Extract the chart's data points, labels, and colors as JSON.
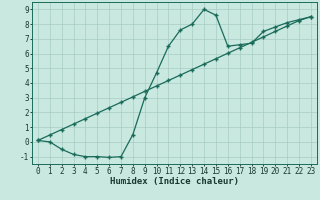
{
  "xlabel": "Humidex (Indice chaleur)",
  "bg_color": "#c8e8e0",
  "grid_color": "#a8ccc4",
  "line_color": "#1a6b5a",
  "xlim": [
    -0.5,
    23.5
  ],
  "ylim": [
    -1.5,
    9.5
  ],
  "xticks": [
    0,
    1,
    2,
    3,
    4,
    5,
    6,
    7,
    8,
    9,
    10,
    11,
    12,
    13,
    14,
    15,
    16,
    17,
    18,
    19,
    20,
    21,
    22,
    23
  ],
  "yticks": [
    -1,
    0,
    1,
    2,
    3,
    4,
    5,
    6,
    7,
    8,
    9
  ],
  "curve1_x": [
    0,
    1,
    2,
    3,
    4,
    5,
    6,
    7,
    8,
    9,
    10,
    11,
    12,
    13,
    14,
    15,
    16,
    17,
    18,
    19,
    20,
    21,
    22,
    23
  ],
  "curve1_y": [
    0.1,
    0.0,
    -0.5,
    -0.85,
    -1.0,
    -1.0,
    -1.05,
    -1.0,
    0.5,
    3.0,
    4.7,
    6.5,
    7.6,
    8.0,
    9.0,
    8.6,
    6.5,
    6.6,
    6.7,
    7.5,
    7.8,
    8.1,
    8.3,
    8.5
  ],
  "curve2_x": [
    0,
    1,
    2,
    3,
    4,
    5,
    6,
    7,
    8,
    9,
    10,
    11,
    12,
    13,
    14,
    15,
    16,
    17,
    18,
    19,
    20,
    21,
    22,
    23
  ],
  "curve2_y": [
    0.1,
    0.47,
    0.84,
    1.21,
    1.58,
    1.95,
    2.32,
    2.69,
    3.06,
    3.43,
    3.8,
    4.17,
    4.54,
    4.91,
    5.28,
    5.65,
    6.02,
    6.39,
    6.76,
    7.13,
    7.5,
    7.87,
    8.24,
    8.5
  ],
  "marker": "+",
  "tick_fontsize": 5.5,
  "xlabel_fontsize": 6.5,
  "linewidth": 0.9,
  "markersize": 3.5,
  "markeredgewidth": 1.0
}
